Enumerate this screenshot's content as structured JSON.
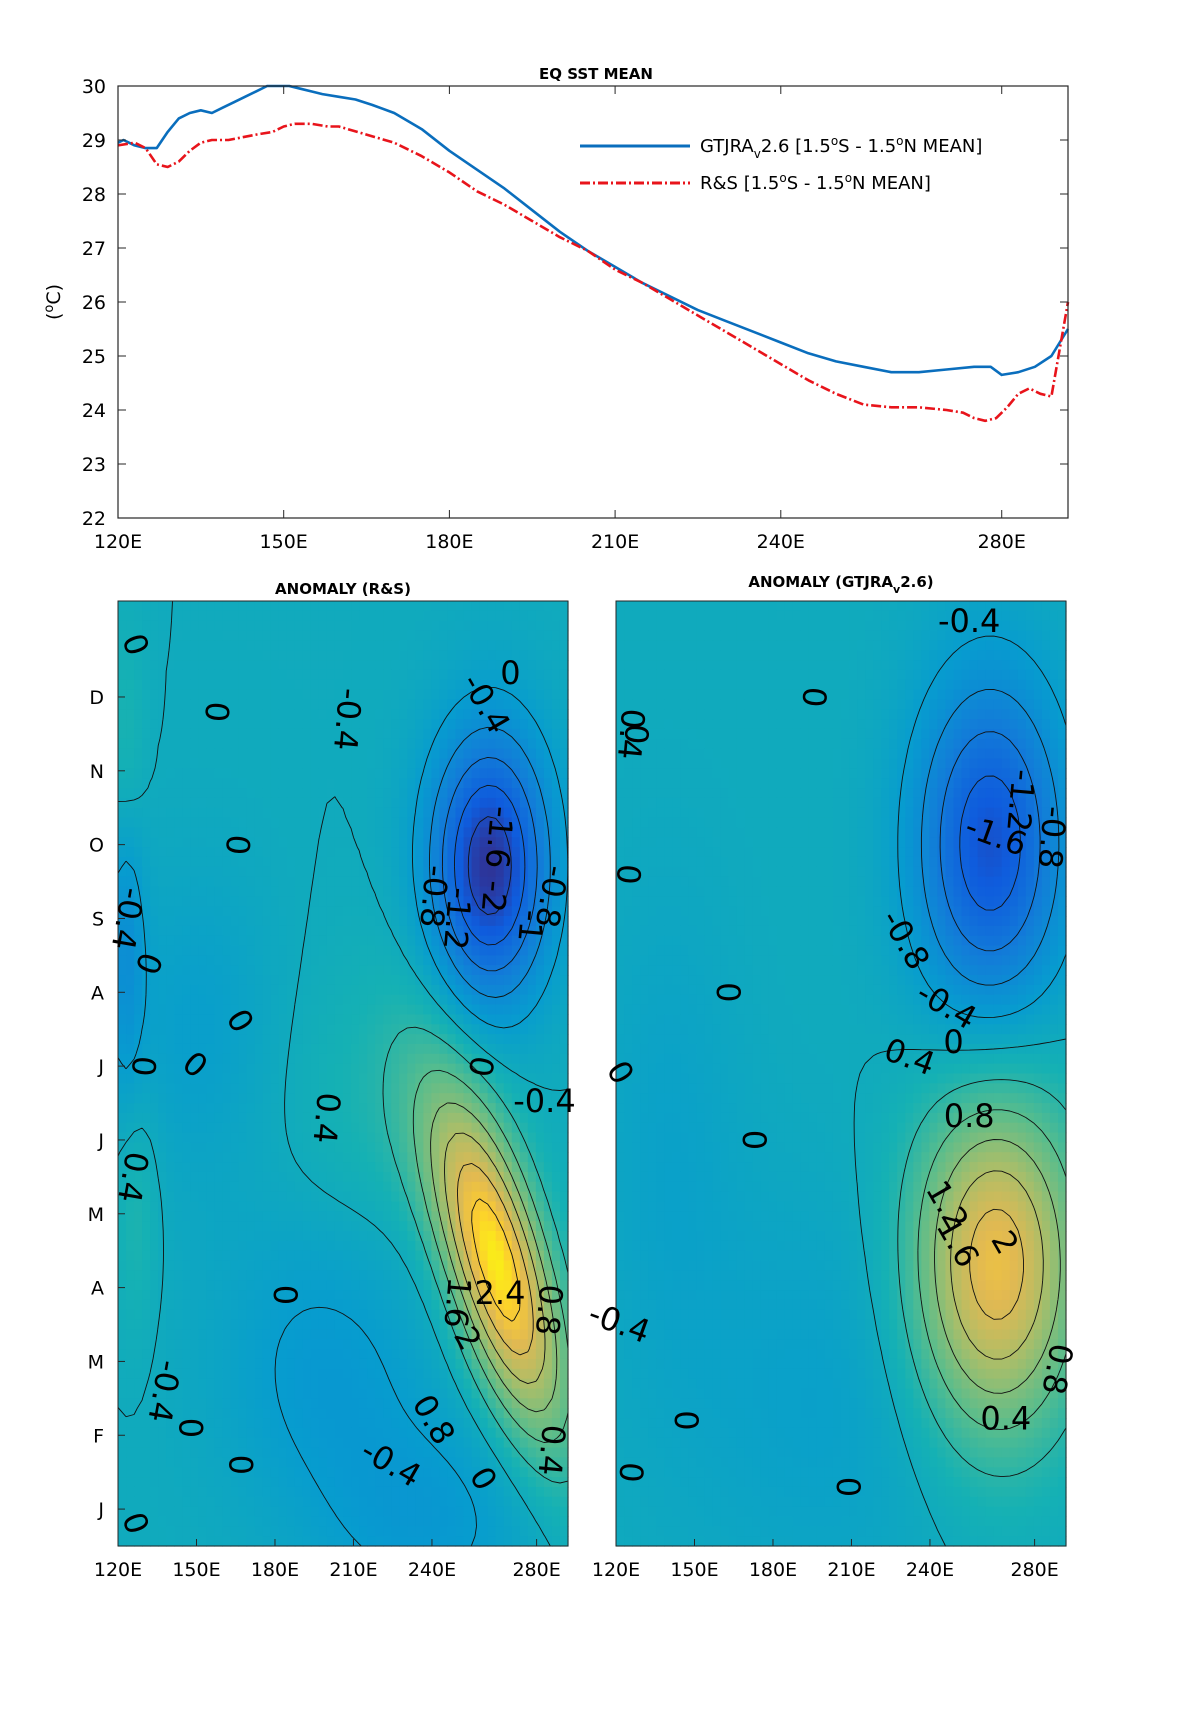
{
  "chart_data": [
    {
      "type": "line",
      "title": "EQ SST MEAN",
      "ylabel": "(°C)",
      "xlabel": "",
      "xlim": [
        120,
        292
      ],
      "ylim": [
        22,
        30
      ],
      "xticks": [
        120,
        150,
        180,
        210,
        240,
        280
      ],
      "xtick_labels": [
        "120E",
        "150E",
        "180E",
        "210E",
        "240E",
        "280E"
      ],
      "yticks": [
        22,
        23,
        24,
        25,
        26,
        27,
        28,
        29,
        30
      ],
      "ytick_labels": [
        "22",
        "23",
        "24",
        "25",
        "26",
        "27",
        "28",
        "29",
        "30"
      ],
      "grid": false,
      "legend_position": "top-right",
      "series": [
        {
          "name": "GTJRA",
          "legend_parts": {
            "a": "GTJRA",
            "sub": "v",
            "b": "2.6 [1.5",
            "sup1": "o",
            "c": "S - 1.5",
            "sup2": "o",
            "d": "N MEAN]"
          },
          "color": "#0a6ebd",
          "style": "solid",
          "x": [
            120,
            121,
            123,
            125,
            127,
            129,
            131,
            133,
            135,
            137,
            139,
            141,
            143,
            145,
            147,
            149,
            151,
            153,
            155,
            157,
            160,
            163,
            166,
            170,
            175,
            180,
            185,
            190,
            195,
            200,
            205,
            210,
            215,
            220,
            225,
            230,
            235,
            240,
            245,
            250,
            255,
            260,
            265,
            270,
            275,
            278,
            280,
            283,
            286,
            289,
            292
          ],
          "y": [
            28.95,
            29.0,
            28.9,
            28.85,
            28.85,
            29.15,
            29.4,
            29.5,
            29.55,
            29.5,
            29.6,
            29.7,
            29.8,
            29.9,
            30.0,
            30.0,
            30.0,
            29.95,
            29.9,
            29.85,
            29.8,
            29.75,
            29.65,
            29.5,
            29.2,
            28.8,
            28.45,
            28.1,
            27.7,
            27.3,
            26.95,
            26.65,
            26.35,
            26.1,
            25.85,
            25.65,
            25.45,
            25.25,
            25.05,
            24.9,
            24.8,
            24.7,
            24.7,
            24.75,
            24.8,
            24.8,
            24.65,
            24.7,
            24.8,
            25.0,
            25.5
          ]
        },
        {
          "name": "R&S",
          "legend_parts": {
            "a": "R&S [1.5",
            "sup1": "o",
            "c": "S - 1.5",
            "sup2": "o",
            "d": "N MEAN]"
          },
          "color": "#e8141b",
          "style": "dashdot",
          "x": [
            120,
            123,
            125,
            127,
            129,
            131,
            133,
            135,
            137,
            140,
            145,
            148,
            150,
            152,
            155,
            158,
            160,
            165,
            170,
            175,
            180,
            185,
            190,
            195,
            200,
            205,
            210,
            215,
            220,
            225,
            230,
            235,
            240,
            245,
            250,
            255,
            260,
            265,
            270,
            273,
            275,
            277,
            279,
            281,
            283,
            285,
            287,
            289,
            292
          ],
          "y": [
            28.9,
            28.95,
            28.85,
            28.55,
            28.5,
            28.6,
            28.8,
            28.95,
            29.0,
            29.0,
            29.1,
            29.15,
            29.25,
            29.3,
            29.3,
            29.25,
            29.25,
            29.1,
            28.95,
            28.7,
            28.4,
            28.05,
            27.8,
            27.5,
            27.2,
            26.95,
            26.6,
            26.35,
            26.05,
            25.75,
            25.45,
            25.15,
            24.85,
            24.55,
            24.3,
            24.1,
            24.05,
            24.05,
            24.0,
            23.95,
            23.85,
            23.8,
            23.85,
            24.05,
            24.3,
            24.4,
            24.3,
            24.25,
            26.0
          ]
        }
      ]
    },
    {
      "type": "heatmap",
      "title": "ANOMALY (R&S)",
      "xlim": [
        120,
        292
      ],
      "xticks": [
        120,
        150,
        180,
        210,
        240,
        280
      ],
      "xtick_labels": [
        "120E",
        "150E",
        "180E",
        "210E",
        "240E",
        "280E"
      ],
      "month_labels": [
        "J",
        "F",
        "M",
        "A",
        "M",
        "J",
        "J",
        "A",
        "S",
        "O",
        "N",
        "D"
      ],
      "colorscale": "parula",
      "features": [
        {
          "lon": 265,
          "month": 3.8,
          "amp": 2.7,
          "slon": 18,
          "smon": 1.2,
          "tilt": 6
        },
        {
          "lon": 262,
          "month": 9.2,
          "amp": -2.3,
          "slon": 16,
          "smon": 1.3,
          "tilt": 0
        },
        {
          "lon": 123,
          "month": 8.3,
          "amp": -0.7,
          "slon": 5,
          "smon": 1.5,
          "tilt": 0
        },
        {
          "lon": 200,
          "month": 2.5,
          "amp": -0.5,
          "slon": 30,
          "smon": 1.5,
          "tilt": 0
        },
        {
          "lon": 150,
          "month": 7.0,
          "amp": -0.35,
          "slon": 22,
          "smon": 1.5,
          "tilt": 0
        },
        {
          "lon": 240,
          "month": 0.3,
          "amp": -0.45,
          "slon": 30,
          "smon": 1.0,
          "tilt": 0
        },
        {
          "lon": 123,
          "month": 10.6,
          "amp": 0.4,
          "slon": 5,
          "smon": 1.2,
          "tilt": 0
        },
        {
          "lon": 127,
          "month": 4.6,
          "amp": 0.35,
          "slon": 6,
          "smon": 1.2,
          "tilt": 0
        },
        {
          "lon": 225,
          "month": 5.8,
          "amp": 0.3,
          "slon": 30,
          "smon": 1.5,
          "tilt": 0
        }
      ],
      "contour_labels": [
        {
          "text": "0",
          "lon": 126,
          "month": 12.2,
          "rot": 70
        },
        {
          "text": "0",
          "lon": 157,
          "month": 11.3,
          "rot": 95
        },
        {
          "text": "-0.4",
          "lon": 207,
          "month": 11.2,
          "rot": 95
        },
        {
          "text": "-0.4",
          "lon": 260,
          "month": 11.4,
          "rot": 60
        },
        {
          "text": "0",
          "lon": 270,
          "month": 11.8,
          "rot": 0
        },
        {
          "text": "0",
          "lon": 165,
          "month": 9.5,
          "rot": 95
        },
        {
          "text": "-0.4",
          "lon": 123,
          "month": 8.5,
          "rot": 100
        },
        {
          "text": "-0.8",
          "lon": 240,
          "month": 8.8,
          "rot": 95
        },
        {
          "text": "-1.2",
          "lon": 249,
          "month": 8.5,
          "rot": 95
        },
        {
          "text": "-1.6",
          "lon": 265,
          "month": 9.6,
          "rot": 95
        },
        {
          "text": "-2",
          "lon": 263,
          "month": 8.8,
          "rot": 95
        },
        {
          "text": "-0.8",
          "lon": 285,
          "month": 8.8,
          "rot": 100
        },
        {
          "text": "-1",
          "lon": 277,
          "month": 8.4,
          "rot": 95
        },
        {
          "text": "0",
          "lon": 131,
          "month": 7.9,
          "rot": 110
        },
        {
          "text": "0",
          "lon": 166,
          "month": 7.1,
          "rot": 60
        },
        {
          "text": "0",
          "lon": 129,
          "month": 6.5,
          "rot": 95
        },
        {
          "text": "0",
          "lon": 149,
          "month": 6.5,
          "rot": 40
        },
        {
          "text": "0",
          "lon": 258,
          "month": 6.5,
          "rot": 100
        },
        {
          "text": "-0.4",
          "lon": 283,
          "month": 6.0,
          "rot": 0
        },
        {
          "text": "0.4",
          "lon": 199,
          "month": 5.8,
          "rot": 95
        },
        {
          "text": "0.4",
          "lon": 125,
          "month": 5.0,
          "rot": 100
        },
        {
          "text": "0",
          "lon": 183,
          "month": 3.4,
          "rot": 90
        },
        {
          "text": "2.4",
          "lon": 266,
          "month": 3.4,
          "rot": 0
        },
        {
          "text": "1.6",
          "lon": 249,
          "month": 3.3,
          "rot": 95
        },
        {
          "text": "2",
          "lon": 253,
          "month": 2.8,
          "rot": 60
        },
        {
          "text": "0.8",
          "lon": 284,
          "month": 3.2,
          "rot": 95
        },
        {
          "text": "-0.4",
          "lon": 137,
          "month": 2.1,
          "rot": 100
        },
        {
          "text": "0.8",
          "lon": 240,
          "month": 1.7,
          "rot": 60
        },
        {
          "text": "0",
          "lon": 147,
          "month": 1.6,
          "rot": 90
        },
        {
          "text": "-0.4",
          "lon": 224,
          "month": 1.1,
          "rot": 30
        },
        {
          "text": "0",
          "lon": 166,
          "month": 1.1,
          "rot": 90
        },
        {
          "text": "0",
          "lon": 259,
          "month": 0.9,
          "rot": 60
        },
        {
          "text": "0.4",
          "lon": 285,
          "month": 1.3,
          "rot": 95
        },
        {
          "text": "0",
          "lon": 126,
          "month": 0.3,
          "rot": 70
        }
      ]
    },
    {
      "type": "heatmap",
      "title_parts": {
        "a": "ANOMALY (GTJRA",
        "sub": "v",
        "b": "2.6)"
      },
      "xlim": [
        120,
        292
      ],
      "xticks": [
        120,
        150,
        180,
        210,
        240,
        280
      ],
      "xtick_labels": [
        "120E",
        "150E",
        "180E",
        "210E",
        "240E",
        "280E"
      ],
      "colorscale": "parula",
      "features": [
        {
          "lon": 265,
          "month": 3.8,
          "amp": 2.3,
          "slon": 22,
          "smon": 1.6,
          "tilt": 0
        },
        {
          "lon": 263,
          "month": 9.5,
          "amp": -1.9,
          "slon": 20,
          "smon": 1.6,
          "tilt": 0
        },
        {
          "lon": 200,
          "month": 2.0,
          "amp": -0.3,
          "slon": 40,
          "smon": 2.0,
          "tilt": 0
        },
        {
          "lon": 140,
          "month": 5.5,
          "amp": -0.25,
          "slon": 20,
          "smon": 2.5,
          "tilt": 0
        }
      ],
      "contour_labels": [
        {
          "text": "-0.4",
          "lon": 255,
          "month": 12.5,
          "rot": 0
        },
        {
          "text": "0",
          "lon": 195,
          "month": 11.5,
          "rot": 95
        },
        {
          "text": "0.4",
          "lon": 125,
          "month": 11.0,
          "rot": 95
        },
        {
          "text": "0",
          "lon": 127,
          "month": 11.0,
          "rot": 95
        },
        {
          "text": "-1.2",
          "lon": 274,
          "month": 10.1,
          "rot": 95
        },
        {
          "text": "-0.8",
          "lon": 286,
          "month": 9.6,
          "rot": 95
        },
        {
          "text": "-1.6",
          "lon": 265,
          "month": 9.6,
          "rot": 20
        },
        {
          "text": "0",
          "lon": 124,
          "month": 9.1,
          "rot": 95
        },
        {
          "text": "-0.8",
          "lon": 230,
          "month": 8.2,
          "rot": 60
        },
        {
          "text": "0",
          "lon": 162,
          "month": 7.5,
          "rot": 90
        },
        {
          "text": "-0.4",
          "lon": 246,
          "month": 7.3,
          "rot": 30
        },
        {
          "text": "0",
          "lon": 249,
          "month": 6.8,
          "rot": 0
        },
        {
          "text": "0.4",
          "lon": 232,
          "month": 6.6,
          "rot": 20
        },
        {
          "text": "0",
          "lon": 121,
          "month": 6.4,
          "rot": 60
        },
        {
          "text": "0.8",
          "lon": 255,
          "month": 5.8,
          "rot": 0
        },
        {
          "text": "0",
          "lon": 172,
          "month": 5.5,
          "rot": 90
        },
        {
          "text": "1.2",
          "lon": 246,
          "month": 4.6,
          "rot": 60
        },
        {
          "text": "1.6",
          "lon": 250,
          "month": 4.1,
          "rot": 60
        },
        {
          "text": "2",
          "lon": 268,
          "month": 4.1,
          "rot": 60
        },
        {
          "text": "-0.4",
          "lon": 121,
          "month": 3.0,
          "rot": 20
        },
        {
          "text": "0.8",
          "lon": 288,
          "month": 2.4,
          "rot": 100
        },
        {
          "text": "0.4",
          "lon": 269,
          "month": 1.7,
          "rot": 0
        },
        {
          "text": "0",
          "lon": 146,
          "month": 1.7,
          "rot": 90
        },
        {
          "text": "0",
          "lon": 125,
          "month": 1.0,
          "rot": 95
        },
        {
          "text": "0",
          "lon": 208,
          "month": 0.8,
          "rot": 90
        }
      ]
    }
  ]
}
